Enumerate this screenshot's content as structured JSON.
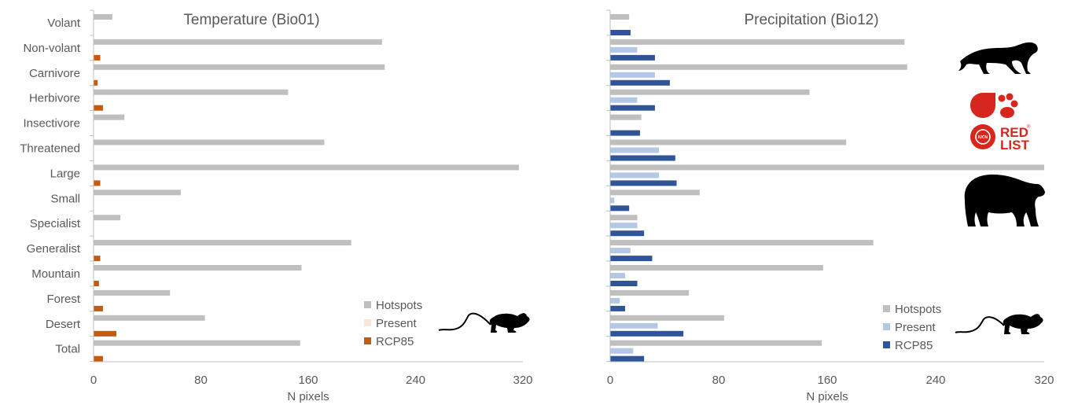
{
  "chart_data": [
    {
      "type": "bar",
      "orientation": "horizontal",
      "title": "Temperature (Bio01)",
      "xlabel": "N pixels",
      "ylabel": "",
      "xlim": [
        0,
        320
      ],
      "xticks": [
        "0",
        "80",
        "160",
        "240",
        "320"
      ],
      "legend_position": "bottom-right",
      "categories": [
        "Volant",
        "Non-volant",
        "Carnivore",
        "Herbivore",
        "Insectivore",
        "Threatened",
        "Large",
        "Small",
        "Specialist",
        "Generalist",
        "Mountain",
        "Forest",
        "Desert",
        "Total"
      ],
      "series": [
        {
          "name": "Hotspots",
          "color": "#bfbfbf",
          "values": [
            14,
            215,
            217,
            145,
            23,
            172,
            317,
            65,
            20,
            192,
            155,
            57,
            83,
            154
          ]
        },
        {
          "name": "Present",
          "color": "#fbe5d6",
          "values": [
            0,
            0,
            0,
            0,
            0,
            0,
            0,
            0,
            0,
            0,
            0,
            0,
            0,
            0
          ]
        },
        {
          "name": "RCP85",
          "color": "#c55a11",
          "values": [
            0,
            5,
            3,
            7,
            0,
            0,
            5,
            0,
            0,
            5,
            4,
            7,
            17,
            7
          ]
        }
      ]
    },
    {
      "type": "bar",
      "orientation": "horizontal",
      "title": "Precipitation (Bio12)",
      "xlabel": "N pixels",
      "ylabel": "",
      "xlim": [
        0,
        320
      ],
      "xticks": [
        "0",
        "80",
        "160",
        "240",
        "320"
      ],
      "legend_position": "bottom-right",
      "categories": [
        "Volant",
        "Non-volant",
        "Carnivore",
        "Herbivore",
        "Insectivore",
        "Threatened",
        "Large",
        "Small",
        "Specialist",
        "Generalist",
        "Mountain",
        "Forest",
        "Desert",
        "Total"
      ],
      "series": [
        {
          "name": "Hotspots",
          "color": "#bfbfbf",
          "values": [
            14,
            217,
            219,
            147,
            23,
            174,
            320,
            66,
            20,
            194,
            157,
            58,
            84,
            156
          ]
        },
        {
          "name": "Present",
          "color": "#b4c7e7",
          "values": [
            0,
            20,
            33,
            20,
            0,
            36,
            36,
            3,
            20,
            15,
            11,
            7,
            35,
            17
          ]
        },
        {
          "name": "RCP85",
          "color": "#2f5597",
          "values": [
            15,
            33,
            44,
            33,
            22,
            48,
            49,
            14,
            25,
            31,
            20,
            11,
            54,
            25
          ]
        }
      ]
    }
  ],
  "images": {
    "left_panel": [
      "rodent-silhouette-icon"
    ],
    "right_panel": [
      "panther-silhouette-icon",
      "iucn-red-list-logo",
      "bear-silhouette-icon",
      "rodent-silhouette-icon"
    ],
    "logo_text": [
      "RED",
      "LIST",
      "IUCN",
      "®"
    ]
  }
}
